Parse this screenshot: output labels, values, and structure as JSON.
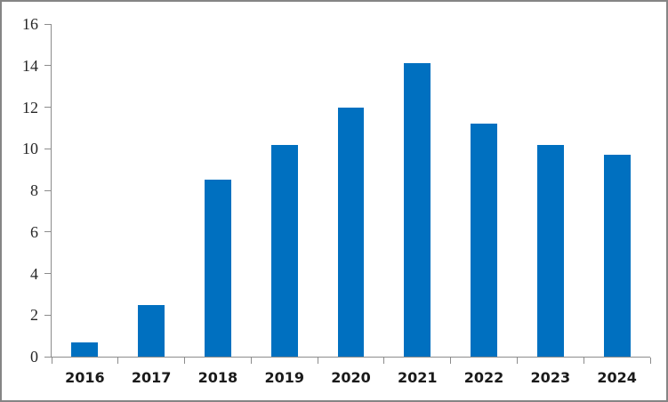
{
  "chart_data": {
    "type": "bar",
    "title": "",
    "xlabel": "",
    "ylabel": "",
    "categories": [
      "2016",
      "2017",
      "2018",
      "2019",
      "2020",
      "2021",
      "2022",
      "2023",
      "2024"
    ],
    "values": [
      0.7,
      2.5,
      8.5,
      10.2,
      12.0,
      14.1,
      11.2,
      10.2,
      9.7
    ],
    "ylim": [
      0,
      16
    ],
    "yticks": [
      0,
      2,
      4,
      6,
      8,
      10,
      12,
      14,
      16
    ],
    "grid": false,
    "legend": false,
    "bar_gap_fraction": 0.4,
    "colors": {
      "bar": "#0070C0",
      "axis": "#8c8c8c",
      "y_tick_text": "#262626",
      "x_tick_text": "#1a1a1a",
      "frame_border": "#858585",
      "background": "#ffffff"
    }
  }
}
